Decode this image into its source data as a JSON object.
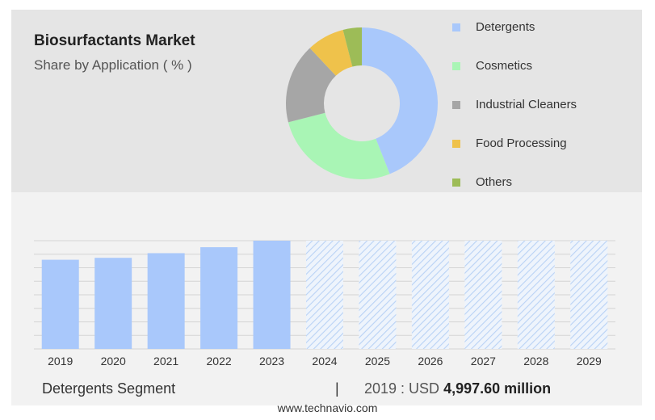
{
  "title": "Biosurfactants Market",
  "subtitle": "Share by Application ( % )",
  "colors": {
    "detergents": "#a9c8fb",
    "cosmetics": "#a9f5b5",
    "industrial_cleaners": "#a6a6a6",
    "food_processing": "#efc24b",
    "others": "#9dbc57",
    "forecast_hatch": "#b9d2f5",
    "grid": "#d4d4d4"
  },
  "footer": {
    "segment": "Detergents Segment",
    "separator": "|",
    "year_label": "2019 : USD",
    "value": "4,997.60 million"
  },
  "source": "www.technavio.com",
  "chart_data": [
    {
      "type": "pie",
      "donut": true,
      "title": "Share by Application ( % )",
      "categories": [
        "Detergents",
        "Cosmetics",
        "Industrial Cleaners",
        "Food Processing",
        "Others"
      ],
      "values": [
        44,
        27,
        17,
        8,
        4
      ],
      "legend": "right"
    },
    {
      "type": "bar",
      "title": "Detergents Segment",
      "categories": [
        "2019",
        "2020",
        "2021",
        "2022",
        "2023",
        "2024",
        "2025",
        "2026",
        "2027",
        "2028",
        "2029"
      ],
      "values": [
        4997.6,
        5105,
        5365,
        5700,
        6065,
        null,
        null,
        null,
        null,
        null,
        null
      ],
      "forecast_categories": [
        "2024",
        "2025",
        "2026",
        "2027",
        "2028",
        "2029"
      ],
      "ylim": [
        0,
        6065
      ],
      "grid": true,
      "y_axis_labels": false
    }
  ]
}
